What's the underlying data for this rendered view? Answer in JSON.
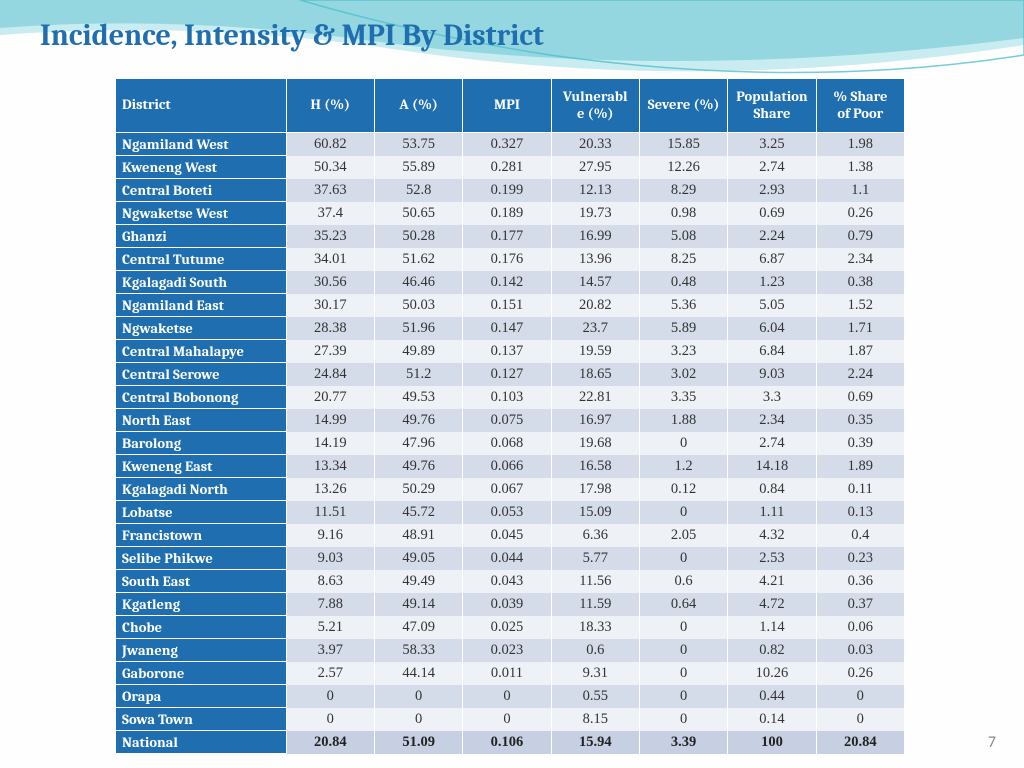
{
  "title": "Incidence, Intensity & MPI By District",
  "page_number": "7",
  "table": {
    "type": "table",
    "header_bg": "#1f6fb0",
    "header_fg": "#ffffff",
    "row_label_bg": "#1f6fb0",
    "row_label_fg": "#ffffff",
    "odd_row_bg": "#d5dce9",
    "even_row_bg": "#eef1f6",
    "national_row_bg": "#c7d0e2",
    "title_fontsize": 30,
    "cell_fontsize": 14.5,
    "header_fontsize": 14.5,
    "columns": [
      "District",
      "H (%)",
      "A (%)",
      "MPI",
      "Vulnerable (%)",
      "Severe (%)",
      "Population Share",
      "% Share of Poor"
    ],
    "rows": [
      [
        "Ngamiland West",
        "60.82",
        "53.75",
        "0.327",
        "20.33",
        "15.85",
        "3.25",
        "1.98"
      ],
      [
        "Kweneng West",
        "50.34",
        "55.89",
        "0.281",
        "27.95",
        "12.26",
        "2.74",
        "1.38"
      ],
      [
        "Central Boteti",
        "37.63",
        "52.8",
        "0.199",
        "12.13",
        "8.29",
        "2.93",
        "1.1"
      ],
      [
        "Ngwaketse West",
        "37.4",
        "50.65",
        "0.189",
        "19.73",
        "0.98",
        "0.69",
        "0.26"
      ],
      [
        "Ghanzi",
        "35.23",
        "50.28",
        "0.177",
        "16.99",
        "5.08",
        "2.24",
        "0.79"
      ],
      [
        "Central Tutume",
        "34.01",
        "51.62",
        "0.176",
        "13.96",
        "8.25",
        "6.87",
        "2.34"
      ],
      [
        "Kgalagadi South",
        "30.56",
        "46.46",
        "0.142",
        "14.57",
        "0.48",
        "1.23",
        "0.38"
      ],
      [
        "Ngamiland East",
        "30.17",
        "50.03",
        "0.151",
        "20.82",
        "5.36",
        "5.05",
        "1.52"
      ],
      [
        "Ngwaketse",
        "28.38",
        "51.96",
        "0.147",
        "23.7",
        "5.89",
        "6.04",
        "1.71"
      ],
      [
        "Central Mahalapye",
        "27.39",
        "49.89",
        "0.137",
        "19.59",
        "3.23",
        "6.84",
        "1.87"
      ],
      [
        "Central Serowe",
        "24.84",
        "51.2",
        "0.127",
        "18.65",
        "3.02",
        "9.03",
        "2.24"
      ],
      [
        "Central Bobonong",
        "20.77",
        "49.53",
        "0.103",
        "22.81",
        "3.35",
        "3.3",
        "0.69"
      ],
      [
        "North East",
        "14.99",
        "49.76",
        "0.075",
        "16.97",
        "1.88",
        "2.34",
        "0.35"
      ],
      [
        "Barolong",
        "14.19",
        "47.96",
        "0.068",
        "19.68",
        "0",
        "2.74",
        "0.39"
      ],
      [
        "Kweneng East",
        "13.34",
        "49.76",
        "0.066",
        "16.58",
        "1.2",
        "14.18",
        "1.89"
      ],
      [
        "Kgalagadi North",
        "13.26",
        "50.29",
        "0.067",
        "17.98",
        "0.12",
        "0.84",
        "0.11"
      ],
      [
        "Lobatse",
        "11.51",
        "45.72",
        "0.053",
        "15.09",
        "0",
        "1.11",
        "0.13"
      ],
      [
        "Francistown",
        "9.16",
        "48.91",
        "0.045",
        "6.36",
        "2.05",
        "4.32",
        "0.4"
      ],
      [
        "Selibe Phikwe",
        "9.03",
        "49.05",
        "0.044",
        "5.77",
        "0",
        "2.53",
        "0.23"
      ],
      [
        "South East",
        "8.63",
        "49.49",
        "0.043",
        "11.56",
        "0.6",
        "4.21",
        "0.36"
      ],
      [
        "Kgatleng",
        "7.88",
        "49.14",
        "0.039",
        "11.59",
        "0.64",
        "4.72",
        "0.37"
      ],
      [
        "Chobe",
        "5.21",
        "47.09",
        "0.025",
        "18.33",
        "0",
        "1.14",
        "0.06"
      ],
      [
        "Jwaneng",
        "3.97",
        "58.33",
        "0.023",
        "0.6",
        "0",
        "0.82",
        "0.03"
      ],
      [
        "Gaborone",
        "2.57",
        "44.14",
        "0.011",
        "9.31",
        "0",
        "10.26",
        "0.26"
      ],
      [
        "Orapa",
        "0",
        "0",
        "0",
        "0.55",
        "0",
        "0.44",
        "0"
      ],
      [
        "Sowa Town",
        "0",
        "0",
        "0",
        "8.15",
        "0",
        "0.14",
        "0"
      ],
      [
        "National",
        "20.84",
        "51.09",
        "0.106",
        "15.94",
        "3.39",
        "100",
        "20.84"
      ]
    ]
  },
  "wave_colors": [
    "#7ecfd8",
    "#a5e0e6",
    "#4fc0cc"
  ]
}
